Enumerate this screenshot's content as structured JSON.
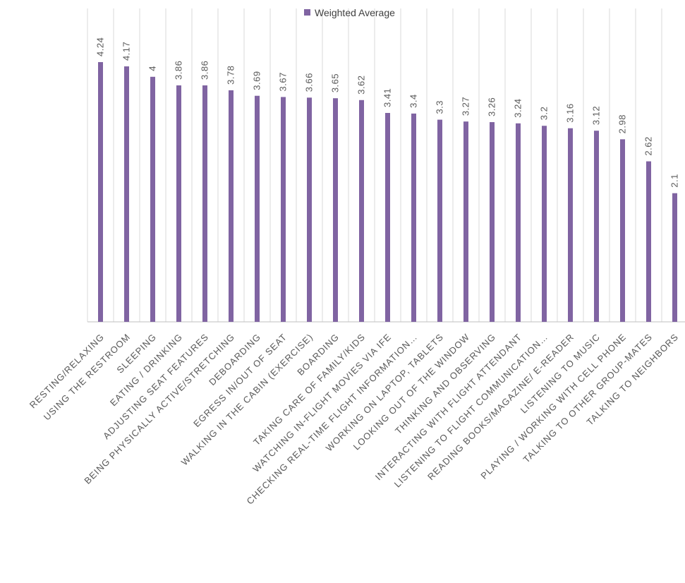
{
  "chart_data": {
    "type": "bar",
    "title": "",
    "xlabel": "",
    "ylabel": "",
    "ylim": [
      0,
      4.5
    ],
    "grid": "vertical",
    "legend_position": "top",
    "categories": [
      "RESTING/RELAXING",
      "USING THE RESTROOM",
      "SLEEPING",
      "EATING / DRINKING",
      "ADJUSTING SEAT FEATURES",
      "BEING PHYSICALLY ACTIVE/STRETCHING",
      "DEBOARDING",
      "EGRESS IN/OUT OF SEAT",
      "WALKING IN THE CABIN (EXERCISE)",
      "BOARDING",
      "TAKING CARE OF FAMILY/KIDS",
      "WATCHING IN-FLIGHT MOVIES VIA IFE",
      "CHECKING REAL-TIME FLIGHT INFORMATION…",
      "WORKING ON LAPTOP, TABLETS",
      "LOOKING OUT OF THE WINDOW",
      "THINKING AND OBSERVING",
      "INTERACTING WITH FLIGHT ATTENDANT",
      "LISTENING TO FLIGHT COMMUNICATION…",
      "READING BOOKS/MAGAZINE/ E-READER",
      "LISTENING TO MUSIC",
      "PLAYING / WORKING WITH CELL PHONE",
      "TALKING TO OTHER GROUP-MATES",
      "TALKING TO NEIGHBORS"
    ],
    "series": [
      {
        "name": "Weighted Average",
        "color": "#8064a2",
        "values": [
          4.24,
          4.17,
          4,
          3.86,
          3.86,
          3.78,
          3.69,
          3.67,
          3.66,
          3.65,
          3.62,
          3.41,
          3.4,
          3.3,
          3.27,
          3.26,
          3.24,
          3.2,
          3.16,
          3.12,
          2.98,
          2.62,
          2.1
        ],
        "value_labels": [
          "4.24",
          "4.17",
          "4",
          "3.86",
          "3.86",
          "3.78",
          "3.69",
          "3.67",
          "3.66",
          "3.65",
          "3.62",
          "3.41",
          "3.4",
          "3.3",
          "3.27",
          "3.26",
          "3.24",
          "3.2",
          "3.16",
          "3.12",
          "2.98",
          "2.62",
          "2.1"
        ]
      }
    ]
  }
}
